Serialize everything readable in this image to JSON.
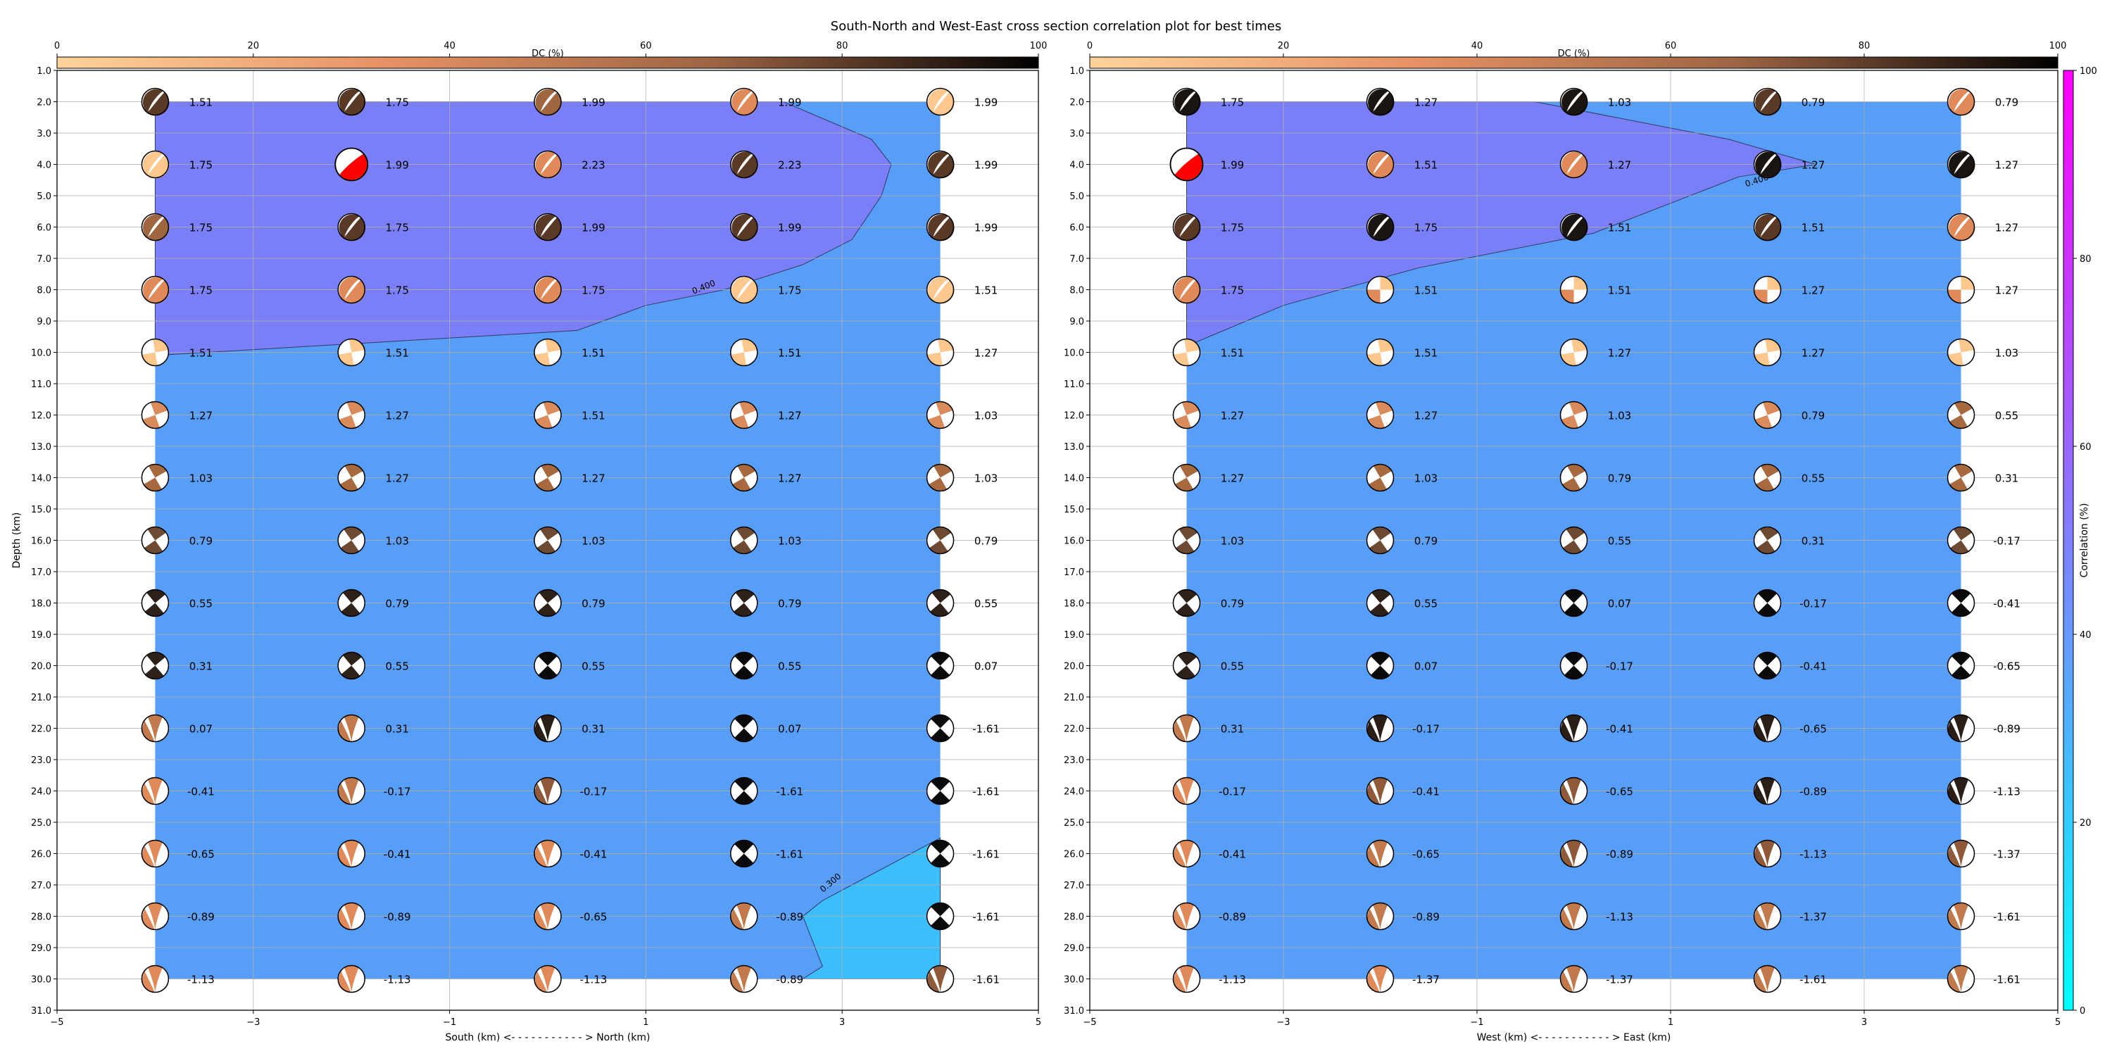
{
  "title": "South-North and West-East cross section correlation plot for best times",
  "colors": {
    "background": "#ffffff",
    "grid": "#b0b0b0",
    "region_low": "#3cbefc",
    "region_mid": "#579ef8",
    "region_high": "#7a7ef7",
    "beachball_compression": [
      "#fcc88e",
      "#e08a5a",
      "#a0663f",
      "#5a3a26",
      "#1b1512",
      "#ff0000"
    ],
    "correlation_cmap": [
      "#00ffff",
      "#ff00ff"
    ],
    "dc_cmap": [
      "#ffd39b",
      "#e79264",
      "#9e6544",
      "#000000"
    ]
  },
  "correlation_colorbar": {
    "label": "Correlation (%)",
    "ticks": [
      "0",
      "20",
      "40",
      "60",
      "80",
      "100"
    ]
  },
  "chart_data": [
    {
      "type": "scatter",
      "panel": "south-north",
      "xlabel": "South (km) <- - - - - - - - - - - > North (km)",
      "ylabel": "Depth (km)",
      "xlim": [
        -5,
        5
      ],
      "ylim": [
        31,
        1
      ],
      "xticks": [
        "−5",
        "−3",
        "−1",
        "1",
        "3",
        "5"
      ],
      "yticks": [
        "1.0",
        "2.0",
        "3.0",
        "4.0",
        "5.0",
        "6.0",
        "7.0",
        "8.0",
        "9.0",
        "10.0",
        "11.0",
        "12.0",
        "13.0",
        "14.0",
        "15.0",
        "16.0",
        "17.0",
        "18.0",
        "19.0",
        "20.0",
        "21.0",
        "22.0",
        "23.0",
        "24.0",
        "25.0",
        "26.0",
        "27.0",
        "28.0",
        "29.0",
        "30.0",
        "31.0"
      ],
      "dc_colorbar": {
        "label": "DC (%)",
        "ticks": [
          "0",
          "20",
          "40",
          "60",
          "80",
          "100"
        ]
      },
      "x": [
        -4,
        -2,
        0,
        2,
        4
      ],
      "depths": [
        2,
        4,
        6,
        8,
        10,
        12,
        14,
        16,
        18,
        20,
        22,
        24,
        26,
        28,
        30
      ],
      "time_labels": [
        [
          "1.51",
          "1.75",
          "1.99",
          "1.99",
          "1.99"
        ],
        [
          "1.75",
          "1.99",
          "2.23",
          "2.23",
          "1.99"
        ],
        [
          "1.75",
          "1.75",
          "1.99",
          "1.99",
          "1.99"
        ],
        [
          "1.75",
          "1.75",
          "1.75",
          "1.75",
          "1.51"
        ],
        [
          "1.51",
          "1.51",
          "1.51",
          "1.51",
          "1.27"
        ],
        [
          "1.27",
          "1.27",
          "1.51",
          "1.27",
          "1.03"
        ],
        [
          "1.03",
          "1.27",
          "1.27",
          "1.27",
          "1.03"
        ],
        [
          "0.79",
          "1.03",
          "1.03",
          "1.03",
          "0.79"
        ],
        [
          "0.55",
          "0.79",
          "0.79",
          "0.79",
          "0.55"
        ],
        [
          "0.31",
          "0.55",
          "0.55",
          "0.55",
          "0.07"
        ],
        [
          "0.07",
          "0.31",
          "0.31",
          "0.07",
          "-1.61"
        ],
        [
          "-0.41",
          "-0.17",
          "-0.17",
          "-1.61",
          "-1.61"
        ],
        [
          "-0.65",
          "-0.41",
          "-0.41",
          "-1.61",
          "-1.61"
        ],
        [
          "-0.89",
          "-0.89",
          "-0.65",
          "-0.89",
          "-1.61"
        ],
        [
          "-1.13",
          "-1.13",
          "-1.13",
          "-0.89",
          "-1.61"
        ]
      ],
      "mechanism": [
        [
          "d4",
          "d4",
          "d3",
          "c3",
          "c2"
        ],
        [
          "c2",
          "red",
          "c3",
          "d4",
          "d4"
        ],
        [
          "d3",
          "d4",
          "d4",
          "d4",
          "d4"
        ],
        [
          "c3",
          "c3",
          "c3",
          "c2",
          "c1"
        ],
        [
          "q1",
          "q1",
          "q1",
          "q1",
          "q1"
        ],
        [
          "q2",
          "q2",
          "q2",
          "q2",
          "q2"
        ],
        [
          "q3",
          "q3",
          "q3",
          "q3",
          "q3"
        ],
        [
          "q4",
          "q4",
          "q4",
          "q4",
          "q4"
        ],
        [
          "q5",
          "q5",
          "q5",
          "q5",
          "q5"
        ],
        [
          "q5",
          "q5",
          "q6",
          "q6",
          "q6"
        ],
        [
          "n3",
          "n3",
          "n5",
          "q6",
          "q6"
        ],
        [
          "n2",
          "n3",
          "n4",
          "q6",
          "q6"
        ],
        [
          "n2",
          "n2",
          "n2",
          "q6",
          "q6"
        ],
        [
          "n2",
          "n2",
          "n2",
          "n3",
          "q6"
        ],
        [
          "n2",
          "n2",
          "n2",
          "n3",
          "n4"
        ]
      ],
      "big_cells": [
        [
          1,
          1
        ]
      ],
      "regions": {
        "high": [
          [
            -4,
            2
          ],
          [
            2.4,
            2
          ],
          [
            3.3,
            3.2
          ],
          [
            3.5,
            4
          ],
          [
            3.4,
            5
          ],
          [
            3.1,
            6.4
          ],
          [
            2.6,
            7.2
          ],
          [
            1.8,
            8
          ],
          [
            1,
            8.5
          ],
          [
            0.3,
            9.3
          ],
          [
            -4,
            10.1
          ]
        ],
        "low": [
          [
            4,
            25.5
          ],
          [
            3.1,
            27.0
          ],
          [
            2.8,
            27.5
          ],
          [
            2.6,
            28.0
          ],
          [
            2.8,
            29.6
          ],
          [
            2.6,
            30
          ],
          [
            4,
            30
          ]
        ]
      },
      "contour_labels": [
        "0.400",
        "0.300"
      ]
    },
    {
      "type": "scatter",
      "panel": "west-east",
      "xlabel": "West (km) <- - - - - - - - - - - > East (km)",
      "ylabel": "",
      "xlim": [
        -5,
        5
      ],
      "ylim": [
        31,
        1
      ],
      "xticks": [
        "−5",
        "−3",
        "−1",
        "1",
        "3",
        "5"
      ],
      "yticks": [
        "1.0",
        "2.0",
        "3.0",
        "4.0",
        "5.0",
        "6.0",
        "7.0",
        "8.0",
        "9.0",
        "10.0",
        "11.0",
        "12.0",
        "13.0",
        "14.0",
        "15.0",
        "16.0",
        "17.0",
        "18.0",
        "19.0",
        "20.0",
        "21.0",
        "22.0",
        "23.0",
        "24.0",
        "25.0",
        "26.0",
        "27.0",
        "28.0",
        "29.0",
        "30.0",
        "31.0"
      ],
      "dc_colorbar": {
        "label": "DC (%)",
        "ticks": [
          "0",
          "20",
          "40",
          "60",
          "80",
          "100"
        ]
      },
      "x": [
        -4,
        -2,
        0,
        2,
        4
      ],
      "depths": [
        2,
        4,
        6,
        8,
        10,
        12,
        14,
        16,
        18,
        20,
        22,
        24,
        26,
        28,
        30
      ],
      "time_labels": [
        [
          "1.75",
          "1.27",
          "1.03",
          "0.79",
          "0.79"
        ],
        [
          "1.99",
          "1.51",
          "1.27",
          "1.27",
          "1.27"
        ],
        [
          "1.75",
          "1.75",
          "1.51",
          "1.51",
          "1.27"
        ],
        [
          "1.75",
          "1.51",
          "1.51",
          "1.27",
          "1.27"
        ],
        [
          "1.51",
          "1.51",
          "1.27",
          "1.27",
          "1.03"
        ],
        [
          "1.27",
          "1.27",
          "1.03",
          "0.79",
          "0.55"
        ],
        [
          "1.27",
          "1.03",
          "0.79",
          "0.55",
          "0.31"
        ],
        [
          "1.03",
          "0.79",
          "0.55",
          "0.31",
          "-0.17"
        ],
        [
          "0.79",
          "0.55",
          "0.07",
          "-0.17",
          "-0.41"
        ],
        [
          "0.55",
          "0.07",
          "-0.17",
          "-0.41",
          "-0.65"
        ],
        [
          "0.31",
          "-0.17",
          "-0.41",
          "-0.65",
          "-0.89"
        ],
        [
          "-0.17",
          "-0.41",
          "-0.65",
          "-0.89",
          "-1.13"
        ],
        [
          "-0.41",
          "-0.65",
          "-0.89",
          "-1.13",
          "-1.37"
        ],
        [
          "-0.89",
          "-0.89",
          "-1.13",
          "-1.37",
          "-1.61"
        ],
        [
          "-1.13",
          "-1.37",
          "-1.37",
          "-1.61",
          "-1.61"
        ]
      ],
      "mechanism": [
        [
          "d5",
          "d5",
          "d5",
          "d4",
          "c3"
        ],
        [
          "red",
          "c3",
          "c3",
          "d5",
          "d5"
        ],
        [
          "d4",
          "d5",
          "d5",
          "d4",
          "c3"
        ],
        [
          "c3",
          "s1",
          "s1",
          "s1",
          "s1"
        ],
        [
          "q1",
          "q1",
          "q1",
          "q1",
          "q1"
        ],
        [
          "q2",
          "q2",
          "q2",
          "q2",
          "q3"
        ],
        [
          "q3",
          "q3",
          "q3",
          "q3",
          "q3"
        ],
        [
          "q4",
          "q4",
          "q4",
          "q4",
          "q4"
        ],
        [
          "q5",
          "q5",
          "q6",
          "q6",
          "q6"
        ],
        [
          "q5",
          "q6",
          "q6",
          "q6",
          "q6"
        ],
        [
          "n3",
          "n5",
          "n5",
          "n5",
          "n5"
        ],
        [
          "n2",
          "n4",
          "n4",
          "n5",
          "n5"
        ],
        [
          "n2",
          "n3",
          "n4",
          "n4",
          "n4"
        ],
        [
          "n2",
          "n3",
          "n3",
          "n3",
          "n3"
        ],
        [
          "n2",
          "n2",
          "n3",
          "n3",
          "n3"
        ]
      ],
      "big_cells": [
        [
          1,
          0
        ]
      ],
      "regions": {
        "high": [
          [
            -4,
            2
          ],
          [
            -0.4,
            2
          ],
          [
            1.6,
            3.2
          ],
          [
            2.5,
            4
          ],
          [
            1.7,
            4.4
          ],
          [
            0.2,
            6.2
          ],
          [
            -1.6,
            7.3
          ],
          [
            -3,
            8.5
          ],
          [
            -4,
            9.8
          ]
        ]
      },
      "contour_labels": [
        "0.400"
      ]
    }
  ]
}
